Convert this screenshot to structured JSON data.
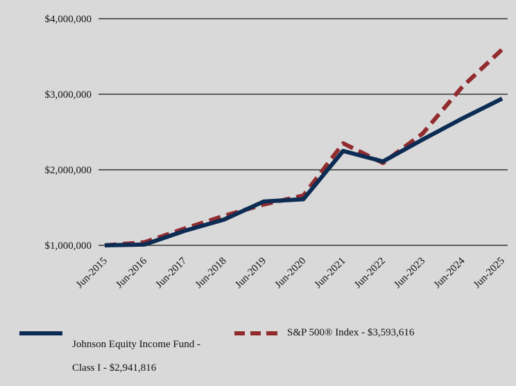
{
  "chart_data": {
    "type": "line",
    "categories": [
      "Jun-2015",
      "Jun-2016",
      "Jun-2017",
      "Jun-2018",
      "Jun-2019",
      "Jun-2020",
      "Jun-2021",
      "Jun-2022",
      "Jun-2023",
      "Jun-2024",
      "Jun-2025"
    ],
    "yticks": [
      1000000,
      2000000,
      3000000,
      4000000
    ],
    "ytick_labels": [
      "$1,000,000",
      "$2,000,000",
      "$3,000,000",
      "$4,000,000"
    ],
    "ylim": [
      1000000,
      4000000
    ],
    "grid": "horizontal",
    "legend_position": "bottom",
    "series": [
      {
        "name": "Johnson Equity Income Fund - Class I - $2,941,816",
        "name_lines": [
          "Johnson Equity Income Fund -",
          "Class I - $2,941,816"
        ],
        "color": "#0d2c54",
        "style": "solid",
        "values": [
          1000000,
          1010000,
          1190000,
          1340000,
          1580000,
          1610000,
          2250000,
          2110000,
          2400000,
          2680000,
          2941816
        ]
      },
      {
        "name": "S&P 500® Index - $3,593,616",
        "name_lines": [
          "S&P 500® Index - $3,593,616"
        ],
        "color": "#922b2e",
        "style": "dashed",
        "values": [
          1000000,
          1040000,
          1220000,
          1390000,
          1540000,
          1660000,
          2350000,
          2090000,
          2480000,
          3100000,
          3593616
        ]
      }
    ]
  }
}
